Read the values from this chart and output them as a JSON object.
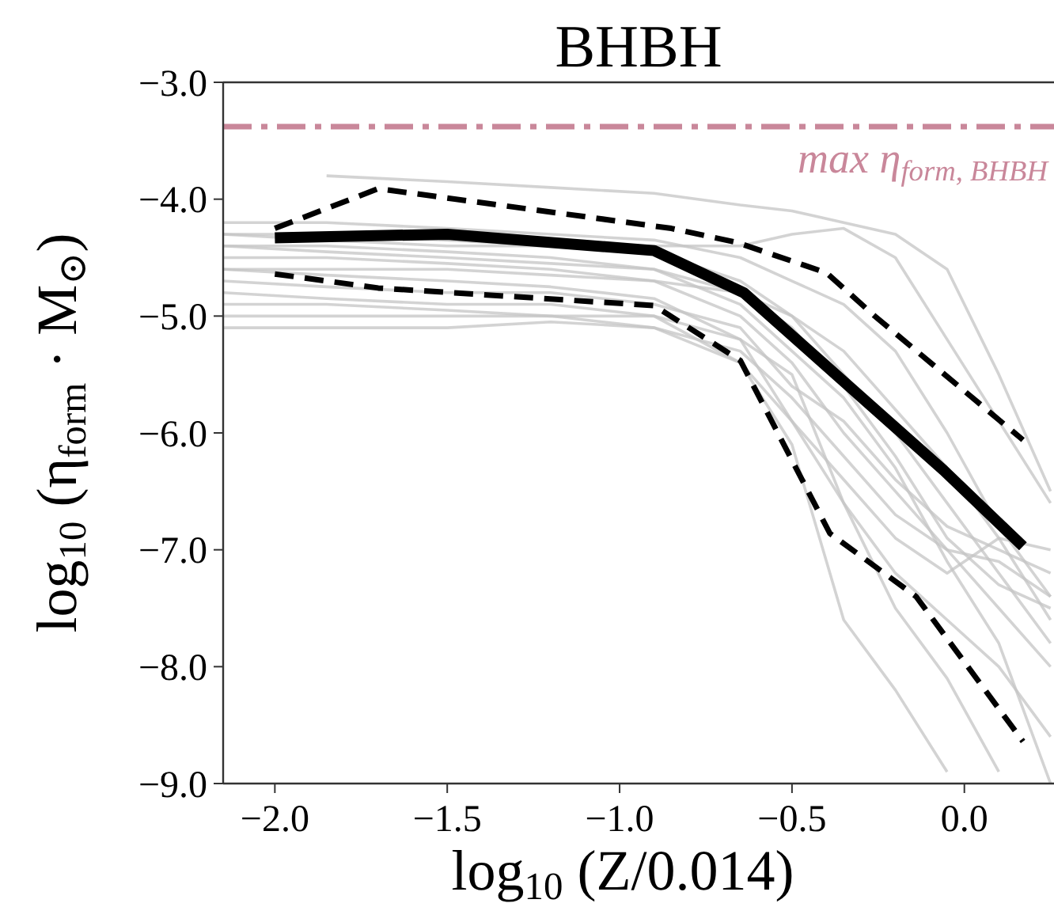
{
  "chart_data": {
    "type": "line",
    "title": "BHBH",
    "xlabel": "log$_{10}$ (Z/0.014)",
    "ylabel": "log$_{10}$ (η$_{form}$ · M$_{⊙}$)",
    "xlim": [
      -2.15,
      0.26
    ],
    "xticks": [
      {
        "value": -2,
        "label": "−2.0"
      },
      {
        "value": -1.5,
        "label": "−1.5"
      },
      {
        "value": -1,
        "label": "−1.0"
      },
      {
        "value": -0.5,
        "label": "−0.5"
      },
      {
        "value": 0,
        "label": "0.0"
      }
    ],
    "ylim": [
      -9,
      -3
    ],
    "yticks": [
      {
        "value": -9,
        "label": "−9.0"
      },
      {
        "value": -8,
        "label": "−8.0"
      },
      {
        "value": -7,
        "label": "−7.0"
      },
      {
        "value": -6,
        "label": "−6.0"
      },
      {
        "value": -5,
        "label": "−5.0"
      },
      {
        "value": -4,
        "label": "−4.0"
      },
      {
        "value": -3,
        "label": "−3.0"
      }
    ],
    "x": [
      -2.15,
      -1.85,
      -1.5,
      -1.2,
      -0.9,
      -0.65,
      -0.5,
      -0.35,
      -0.2,
      -0.05,
      0.1,
      0.25
    ],
    "grid": false,
    "marker": "none",
    "series": [
      {
        "color": "#c4c4c4",
        "line_style": "solid",
        "values": [
          -4.3,
          -4.3,
          -4.35,
          -4.4,
          -4.45,
          -4.7,
          -5.0,
          -5.5,
          -6.0,
          -6.6,
          -7.2,
          -7.8
        ]
      },
      {
        "color": "#c4c4c4",
        "line_style": "solid",
        "values": [
          -4.5,
          -4.5,
          -4.55,
          -4.6,
          -4.7,
          -5.0,
          -5.4,
          -6.0,
          -6.5,
          -7.0,
          -7.5,
          -8.0
        ]
      },
      {
        "color": "#c4c4c4",
        "line_style": "solid",
        "values": [
          -4.6,
          -4.65,
          -4.7,
          -4.75,
          -4.85,
          -5.2,
          -5.9,
          -6.6,
          -7.2,
          -7.6,
          -8.0,
          -8.6
        ]
      },
      {
        "color": "#c4c4c4",
        "line_style": "solid",
        "values": [
          -4.2,
          -4.2,
          -4.25,
          -4.3,
          -4.35,
          -4.5,
          -4.7,
          -4.9,
          -5.3,
          -6.0,
          -6.8,
          -7.4
        ]
      },
      {
        "color": "#c4c4c4",
        "line_style": "solid",
        "values": [
          -4.4,
          -4.4,
          -4.45,
          -4.5,
          -4.6,
          -4.8,
          -5.1,
          -5.6,
          -6.2,
          -6.9,
          -7.3,
          -7.5
        ]
      },
      {
        "color": "#c4c4c4",
        "line_style": "solid",
        "values": [
          -5.1,
          -5.1,
          -5.1,
          -5.05,
          -5.1,
          -5.3,
          -5.7,
          -6.2,
          -6.7,
          -7.0,
          -7.1,
          -7.4
        ]
      },
      {
        "color": "#c4c4c4",
        "line_style": "solid",
        "values": [
          -4.9,
          -4.9,
          -4.95,
          -5.0,
          -5.0,
          -5.2,
          -5.5,
          -6.6,
          -7.5,
          -8.1,
          -8.9,
          null
        ]
      },
      {
        "color": "#c4c4c4",
        "line_style": "solid",
        "values": [
          null,
          -3.8,
          -3.85,
          -3.9,
          -3.95,
          -4.05,
          -4.1,
          -4.2,
          -4.3,
          -4.6,
          -5.5,
          -6.5
        ]
      },
      {
        "color": "#c4c4c4",
        "line_style": "solid",
        "values": [
          -4.7,
          -4.75,
          -4.8,
          -4.8,
          -4.9,
          -5.1,
          -5.6,
          -5.9,
          -6.4,
          -6.8,
          -7.0,
          -7.2
        ]
      },
      {
        "color": "#c4c4c4",
        "line_style": "solid",
        "values": [
          -4.4,
          -4.45,
          -4.5,
          -4.55,
          -4.6,
          -4.9,
          -5.3,
          -5.7,
          -6.3,
          -7.1,
          -7.8,
          -9.0
        ]
      },
      {
        "color": "#c4c4c4",
        "line_style": "solid",
        "values": [
          -4.8,
          -4.85,
          -4.9,
          -4.9,
          -5.0,
          -5.4,
          -6.1,
          -7.6,
          -8.2,
          -8.9,
          null,
          null
        ]
      },
      {
        "color": "#c4c4c4",
        "line_style": "solid",
        "values": [
          -4.3,
          -4.35,
          -4.4,
          -4.4,
          -4.4,
          -4.4,
          -4.3,
          -4.25,
          -4.5,
          -5.2,
          -5.9,
          -6.6
        ]
      },
      {
        "color": "#c4c4c4",
        "line_style": "solid",
        "values": [
          -5.0,
          -5.0,
          -5.0,
          -5.0,
          -5.1,
          -5.4,
          -5.9,
          -6.4,
          -6.9,
          -7.2,
          -6.9,
          -7.0
        ]
      },
      {
        "color": "#c4c4c4",
        "line_style": "solid",
        "values": [
          -4.6,
          -4.6,
          -4.6,
          -4.65,
          -4.7,
          -4.8,
          -5.0,
          -5.3,
          -5.8,
          -6.3,
          -6.9,
          -7.6
        ]
      },
      {
        "color": "#000000",
        "line_style": "solid",
        "x": [
          -2.0,
          -1.5,
          -0.9,
          -0.64,
          -0.06,
          0.17
        ],
        "values": [
          -4.33,
          -4.3,
          -4.44,
          -4.8,
          -6.32,
          -6.97
        ]
      },
      {
        "color": "#000000",
        "line_style": "dashed",
        "x": [
          -2.0,
          -1.7,
          -0.85,
          -0.66,
          -0.4,
          -0.26,
          0.17
        ],
        "values": [
          -4.25,
          -3.91,
          -4.25,
          -4.37,
          -4.63,
          -5.0,
          -6.06
        ]
      },
      {
        "color": "#000000",
        "line_style": "dashed",
        "x": [
          -2.0,
          -1.7,
          -0.9,
          -0.65,
          -0.39,
          -0.14,
          -0.05,
          0.17
        ],
        "values": [
          -4.64,
          -4.76,
          -4.91,
          -5.38,
          -6.86,
          -7.4,
          -7.76,
          -8.64
        ]
      }
    ],
    "ref_lines": [
      {
        "axis": "y",
        "value": -3.38,
        "label": "max η$_{form, BHBH}$",
        "color": "#c9879a",
        "line_style": "dashdot"
      }
    ]
  }
}
